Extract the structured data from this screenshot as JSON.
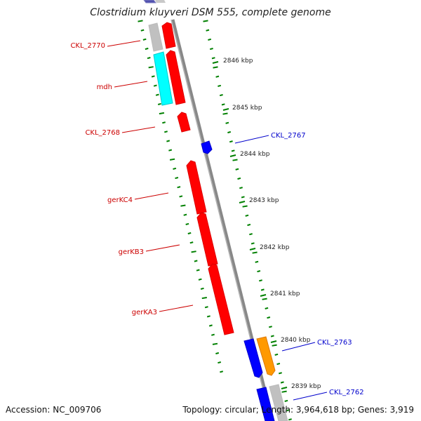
{
  "title": "Clostridium kluyveri DSM 555, complete genome",
  "footer": {
    "accession": "Accession: NC_009706",
    "topology": "Topology: circular; Length: 3,964,618 bp; Genes: 3,919"
  },
  "colors": {
    "forward_gene": "#ff0000",
    "reverse_gene": "#0000ff",
    "rna": "#00ffff",
    "other": "#c0c0c0",
    "highlight": "#ff9900",
    "backbone": "#808080",
    "tick": "#008000",
    "label_forward": "#cc0000",
    "label_reverse": "#0000cc"
  },
  "scale_labels": [
    "2846 kbp",
    "2845 kbp",
    "2844 kbp",
    "2843 kbp",
    "2842 kbp",
    "2841 kbp",
    "2840 kbp",
    "2839 kbp"
  ],
  "gene_labels": {
    "left": [
      "CKL_2770",
      "mdh",
      "CKL_2768",
      "gerKC4",
      "gerKB3",
      "gerKA3"
    ],
    "right": [
      "CKL_2767",
      "CKL_2763",
      "CKL_2762"
    ]
  }
}
